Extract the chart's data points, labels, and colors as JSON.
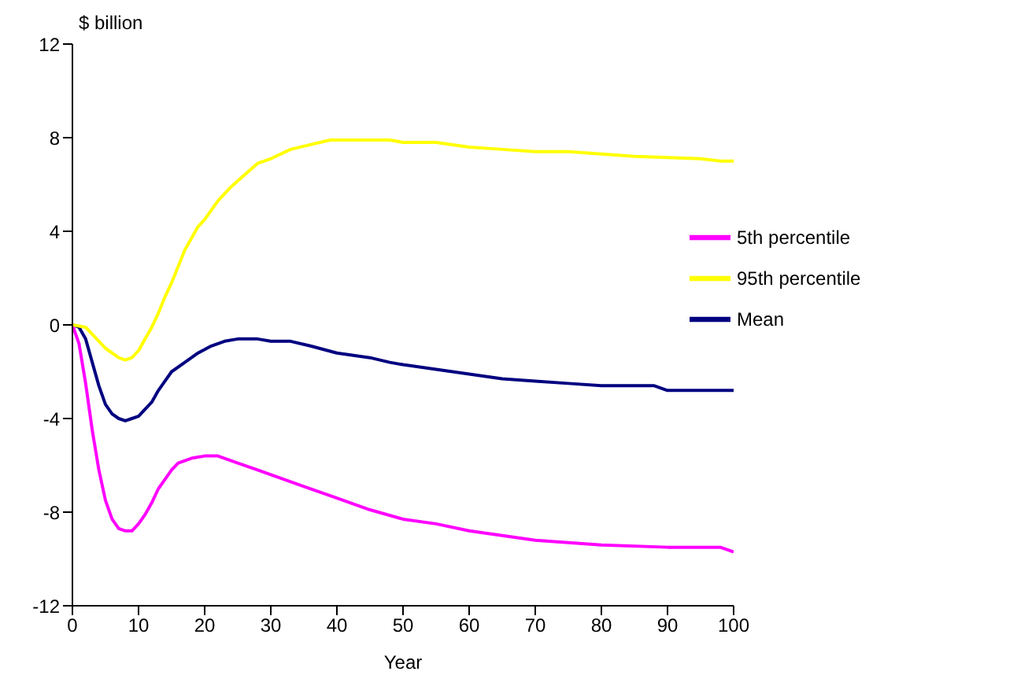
{
  "chart_data": {
    "type": "line",
    "xlabel": "Year",
    "ylabel": "$ billion",
    "xlim": [
      0,
      100
    ],
    "xticks": [
      0,
      10,
      20,
      30,
      40,
      50,
      60,
      70,
      80,
      90,
      100
    ],
    "ylim": [
      -12,
      12
    ],
    "yticks": [
      -12,
      -8,
      -4,
      0,
      4,
      8,
      12
    ],
    "grid": false,
    "legend": "right",
    "marker": "none",
    "line_style": "solid",
    "series": [
      {
        "name": "Mean",
        "color": "#000080",
        "x": [
          0,
          1,
          2,
          3,
          4,
          5,
          6,
          7,
          8,
          9,
          10,
          11,
          12,
          13,
          14,
          15,
          17,
          19,
          21,
          23,
          25,
          28,
          30,
          33,
          36,
          40,
          45,
          48,
          50,
          55,
          60,
          65,
          70,
          75,
          80,
          88,
          90,
          100
        ],
        "values": [
          0,
          -0.1,
          -0.6,
          -1.6,
          -2.6,
          -3.4,
          -3.8,
          -4.0,
          -4.1,
          -4.0,
          -3.9,
          -3.6,
          -3.3,
          -2.8,
          -2.4,
          -2.0,
          -1.6,
          -1.2,
          -0.9,
          -0.7,
          -0.6,
          -0.6,
          -0.7,
          -0.7,
          -0.9,
          -1.2,
          -1.4,
          -1.6,
          -1.7,
          -1.9,
          -2.1,
          -2.3,
          -2.4,
          -2.5,
          -2.6,
          -2.6,
          -2.8,
          -2.8
        ]
      },
      {
        "name": "5th percentile",
        "color": "#ff00ff",
        "x": [
          0,
          1,
          2,
          3,
          4,
          5,
          6,
          7,
          8,
          9,
          10,
          11,
          12,
          13,
          14,
          15,
          16,
          18,
          20,
          22,
          25,
          28,
          30,
          35,
          40,
          45,
          50,
          55,
          60,
          65,
          70,
          75,
          80,
          90,
          98,
          100
        ],
        "values": [
          0,
          -0.8,
          -2.5,
          -4.5,
          -6.2,
          -7.5,
          -8.3,
          -8.7,
          -8.8,
          -8.8,
          -8.5,
          -8.1,
          -7.6,
          -7.0,
          -6.6,
          -6.2,
          -5.9,
          -5.7,
          -5.6,
          -5.6,
          -5.9,
          -6.2,
          -6.4,
          -6.9,
          -7.4,
          -7.9,
          -8.3,
          -8.5,
          -8.8,
          -9.0,
          -9.2,
          -9.3,
          -9.4,
          -9.5,
          -9.5,
          -9.7
        ]
      },
      {
        "name": "95th percentile",
        "color": "#ffff00",
        "x": [
          0,
          2,
          3,
          5,
          7,
          8,
          9,
          10,
          11,
          12,
          13,
          14,
          15,
          16,
          17,
          18,
          19,
          20,
          22,
          24,
          26,
          28,
          30,
          33,
          36,
          39,
          48,
          50,
          55,
          60,
          65,
          70,
          75,
          80,
          85,
          95,
          98,
          100
        ],
        "values": [
          0,
          -0.1,
          -0.4,
          -1.0,
          -1.4,
          -1.5,
          -1.4,
          -1.1,
          -0.6,
          -0.1,
          0.5,
          1.2,
          1.8,
          2.5,
          3.2,
          3.7,
          4.2,
          4.5,
          5.3,
          5.9,
          6.4,
          6.9,
          7.1,
          7.5,
          7.7,
          7.9,
          7.9,
          7.8,
          7.8,
          7.6,
          7.5,
          7.4,
          7.4,
          7.3,
          7.2,
          7.1,
          7.0,
          7.0
        ]
      }
    ]
  }
}
